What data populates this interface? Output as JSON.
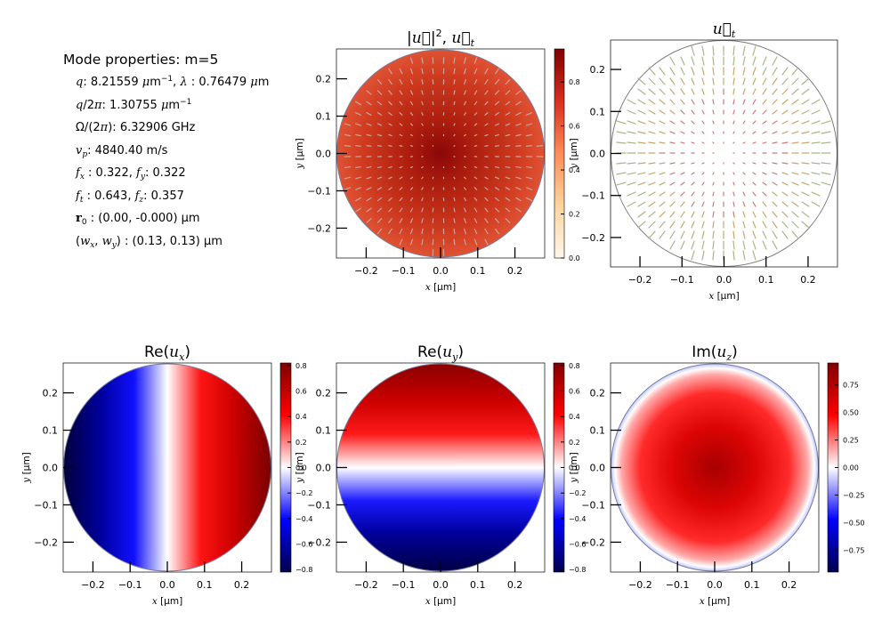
{
  "mode_properties": {
    "heading": "Mode properties: m=5",
    "q_value": "8.21559",
    "lambda_value": "0.76479",
    "q_over_2pi": "1.30755",
    "omega_over_2pi": "6.32906 GHz",
    "vp": "4840.40 m/s",
    "fx": "0.322",
    "fy": "0.322",
    "ft": "0.643",
    "fz": "0.357",
    "r0": "(0.00, -0.000)",
    "wx_wy": "(0.13, 0.13)"
  },
  "chart_data": [
    {
      "type": "heatmap",
      "name": "intensity",
      "title": "|u|², u_t",
      "xlabel": "x [μm]",
      "ylabel": "y [μm]",
      "xlim": [
        -0.28,
        0.28
      ],
      "ylim": [
        -0.28,
        0.28
      ],
      "x_ticks": [
        -0.2,
        -0.1,
        0.0,
        0.1,
        0.2
      ],
      "y_ticks": [
        -0.2,
        -0.1,
        0.0,
        0.1,
        0.2
      ],
      "colormap": "OrRd",
      "clim": [
        0.0,
        0.95
      ],
      "colorbar_ticks": [
        "0.0",
        "0.2",
        "0.4",
        "0.6",
        "0.8"
      ],
      "overlay": "transverse displacement arrows (gray)"
    },
    {
      "type": "vector-field",
      "name": "transverse",
      "title": "u_t",
      "xlabel": "x [μm]",
      "ylabel": "y [μm]",
      "xlim": [
        -0.27,
        0.27
      ],
      "ylim": [
        -0.27,
        0.27
      ],
      "x_ticks": [
        -0.2,
        -0.1,
        0.0,
        0.1,
        0.2
      ],
      "y_ticks": [
        -0.2,
        -0.1,
        0.0,
        0.1,
        0.2
      ],
      "pattern": "radial arrows, magnitude increasing with radius"
    },
    {
      "type": "heatmap",
      "name": "re_ux",
      "title": "Re(u_x)",
      "xlabel": "x [μm]",
      "ylabel": "y [μm]",
      "xlim": [
        -0.28,
        0.28
      ],
      "ylim": [
        -0.28,
        0.28
      ],
      "x_ticks": [
        -0.2,
        -0.1,
        0.0,
        0.1,
        0.2
      ],
      "y_ticks": [
        -0.2,
        -0.1,
        0.0,
        0.1,
        0.2
      ],
      "colormap": "seismic",
      "clim": [
        -0.82,
        0.82
      ],
      "colorbar_ticks": [
        "−0.8",
        "−0.6",
        "−0.4",
        "−0.2",
        "0.0",
        "0.2",
        "0.4",
        "0.6",
        "0.8"
      ],
      "field": "antisymmetric in x"
    },
    {
      "type": "heatmap",
      "name": "re_uy",
      "title": "Re(u_y)",
      "xlabel": "x [μm]",
      "ylabel": "y [μm]",
      "xlim": [
        -0.28,
        0.28
      ],
      "ylim": [
        -0.28,
        0.28
      ],
      "x_ticks": [
        -0.2,
        -0.1,
        0.0,
        0.1,
        0.2
      ],
      "y_ticks": [
        -0.2,
        -0.1,
        0.0,
        0.1,
        0.2
      ],
      "colormap": "seismic",
      "clim": [
        -0.82,
        0.82
      ],
      "colorbar_ticks": [
        "−0.8",
        "−0.6",
        "−0.4",
        "−0.2",
        "0.0",
        "0.2",
        "0.4",
        "0.6",
        "0.8"
      ],
      "field": "antisymmetric in y"
    },
    {
      "type": "heatmap",
      "name": "im_uz",
      "title": "Im(u_z)",
      "xlabel": "x [μm]",
      "ylabel": "y [μm]",
      "xlim": [
        -0.28,
        0.28
      ],
      "ylim": [
        -0.28,
        0.28
      ],
      "x_ticks": [
        -0.2,
        -0.1,
        0.0,
        0.1,
        0.2
      ],
      "y_ticks": [
        -0.2,
        -0.1,
        0.0,
        0.1,
        0.2
      ],
      "colormap": "seismic",
      "clim": [
        -0.95,
        0.95
      ],
      "colorbar_ticks": [
        "−0.75",
        "−0.50",
        "−0.25",
        "0.00",
        "0.25",
        "0.50",
        "0.75"
      ],
      "field": "radially symmetric, maximum at center"
    }
  ]
}
